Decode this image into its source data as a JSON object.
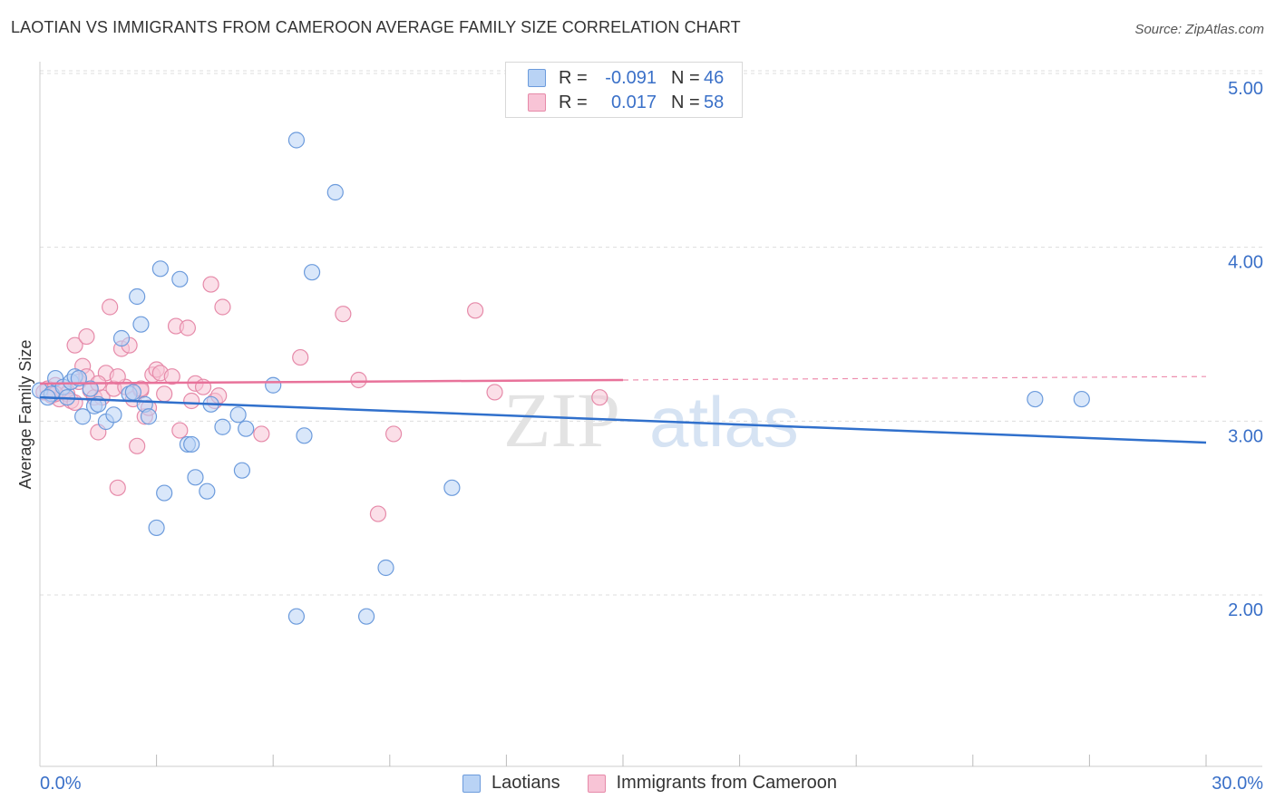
{
  "title": "LAOTIAN VS IMMIGRANTS FROM CAMEROON AVERAGE FAMILY SIZE CORRELATION CHART",
  "source": "Source: ZipAtlas.com",
  "watermark": {
    "zip": "ZIP",
    "atlas": "atlas"
  },
  "legend": {
    "row1": {
      "r_label": "R =",
      "r_value": "-0.091",
      "n_label": "N =",
      "n_value": "46"
    },
    "row2": {
      "r_label": "R =",
      "r_value": "0.017",
      "n_label": "N =",
      "n_value": "58"
    }
  },
  "colors": {
    "blue_fill": "#b9d3f5",
    "blue_stroke": "#6c9bdc",
    "blue_line": "#3070cc",
    "pink_fill": "#f8c4d6",
    "pink_stroke": "#e68aa9",
    "pink_line": "#e8729a",
    "axis_text": "#3a70c8",
    "grid": "#dddddd"
  },
  "chart_data": {
    "type": "scatter",
    "title": "LAOTIAN VS IMMIGRANTS FROM CAMEROON AVERAGE FAMILY SIZE CORRELATION CHART",
    "xlabel": "",
    "ylabel": "Average Family Size",
    "xlim": [
      0,
      30
    ],
    "ylim": [
      1.0,
      5.1
    ],
    "x_tick_labels": {
      "min": "0.0%",
      "max": "30.0%"
    },
    "y_ticks": [
      {
        "value": 2.0,
        "label": "2.00"
      },
      {
        "value": 3.0,
        "label": "3.00"
      },
      {
        "value": 4.0,
        "label": "4.00"
      },
      {
        "value": 5.0,
        "label": "5.00"
      }
    ],
    "grid": true,
    "series": [
      {
        "name": "Laotians",
        "color": "blue",
        "r": -0.091,
        "n": 46,
        "trend": {
          "x0": 0,
          "y0": 3.22,
          "x1": 30,
          "y1": 2.96,
          "dashed_from": null
        },
        "points": [
          [
            0.0,
            3.26
          ],
          [
            0.3,
            3.24
          ],
          [
            0.4,
            3.33
          ],
          [
            0.6,
            3.28
          ],
          [
            0.7,
            3.22
          ],
          [
            0.8,
            3.31
          ],
          [
            0.9,
            3.34
          ],
          [
            1.1,
            3.11
          ],
          [
            1.3,
            3.27
          ],
          [
            1.4,
            3.17
          ],
          [
            1.5,
            3.18
          ],
          [
            1.7,
            3.08
          ],
          [
            1.9,
            3.12
          ],
          [
            2.1,
            3.56
          ],
          [
            2.3,
            3.24
          ],
          [
            2.4,
            3.25
          ],
          [
            2.5,
            3.8
          ],
          [
            2.6,
            3.64
          ],
          [
            2.7,
            3.18
          ],
          [
            2.8,
            3.11
          ],
          [
            3.0,
            2.47
          ],
          [
            3.1,
            3.96
          ],
          [
            3.2,
            2.67
          ],
          [
            3.6,
            3.9
          ],
          [
            3.8,
            2.95
          ],
          [
            3.9,
            2.95
          ],
          [
            4.0,
            2.76
          ],
          [
            4.3,
            2.68
          ],
          [
            4.4,
            3.18
          ],
          [
            4.7,
            3.05
          ],
          [
            5.1,
            3.12
          ],
          [
            5.2,
            2.8
          ],
          [
            5.3,
            3.04
          ],
          [
            6.0,
            3.29
          ],
          [
            6.6,
            4.7
          ],
          [
            6.6,
            1.96
          ],
          [
            6.8,
            3.0
          ],
          [
            7.0,
            3.94
          ],
          [
            7.6,
            4.4
          ],
          [
            8.4,
            1.96
          ],
          [
            8.9,
            2.24
          ],
          [
            10.6,
            2.7
          ],
          [
            25.6,
            3.21
          ],
          [
            26.8,
            3.21
          ],
          [
            1.0,
            3.33
          ],
          [
            0.2,
            3.22
          ]
        ]
      },
      {
        "name": "Immigrants from Cameroon",
        "color": "pink",
        "r": 0.017,
        "n": 58,
        "trend": {
          "x0": 0,
          "y0": 3.3,
          "x1": 30,
          "y1": 3.34,
          "dashed_from": 15
        },
        "points": [
          [
            0.1,
            3.25
          ],
          [
            0.2,
            3.27
          ],
          [
            0.3,
            3.23
          ],
          [
            0.4,
            3.29
          ],
          [
            0.5,
            3.21
          ],
          [
            0.6,
            3.26
          ],
          [
            0.7,
            3.24
          ],
          [
            0.8,
            3.2
          ],
          [
            0.9,
            3.52
          ],
          [
            1.0,
            3.31
          ],
          [
            1.1,
            3.4
          ],
          [
            1.2,
            3.57
          ],
          [
            1.3,
            3.26
          ],
          [
            1.4,
            3.22
          ],
          [
            1.5,
            3.02
          ],
          [
            1.6,
            3.22
          ],
          [
            1.7,
            3.36
          ],
          [
            1.8,
            3.74
          ],
          [
            1.9,
            3.27
          ],
          [
            2.0,
            2.7
          ],
          [
            2.1,
            3.5
          ],
          [
            2.2,
            3.28
          ],
          [
            2.3,
            3.52
          ],
          [
            2.4,
            3.21
          ],
          [
            2.5,
            2.94
          ],
          [
            2.6,
            3.26
          ],
          [
            2.7,
            3.11
          ],
          [
            2.8,
            3.16
          ],
          [
            2.9,
            3.35
          ],
          [
            3.0,
            3.38
          ],
          [
            3.1,
            3.36
          ],
          [
            3.2,
            3.24
          ],
          [
            3.4,
            3.34
          ],
          [
            3.5,
            3.63
          ],
          [
            3.6,
            3.03
          ],
          [
            3.8,
            3.62
          ],
          [
            3.9,
            3.2
          ],
          [
            4.0,
            3.3
          ],
          [
            4.2,
            3.28
          ],
          [
            4.4,
            3.87
          ],
          [
            4.5,
            3.2
          ],
          [
            4.6,
            3.23
          ],
          [
            4.7,
            3.74
          ],
          [
            5.7,
            3.01
          ],
          [
            6.7,
            3.45
          ],
          [
            7.8,
            3.7
          ],
          [
            8.2,
            3.32
          ],
          [
            8.7,
            2.55
          ],
          [
            9.1,
            3.01
          ],
          [
            11.2,
            3.72
          ],
          [
            11.7,
            3.25
          ],
          [
            14.4,
            3.22
          ],
          [
            1.2,
            3.34
          ],
          [
            2.0,
            3.34
          ],
          [
            0.4,
            3.24
          ],
          [
            0.9,
            3.19
          ],
          [
            1.5,
            3.3
          ],
          [
            2.6,
            3.27
          ]
        ]
      }
    ]
  },
  "bottom_legend": {
    "item1": "Laotians",
    "item2": "Immigrants from Cameroon"
  }
}
